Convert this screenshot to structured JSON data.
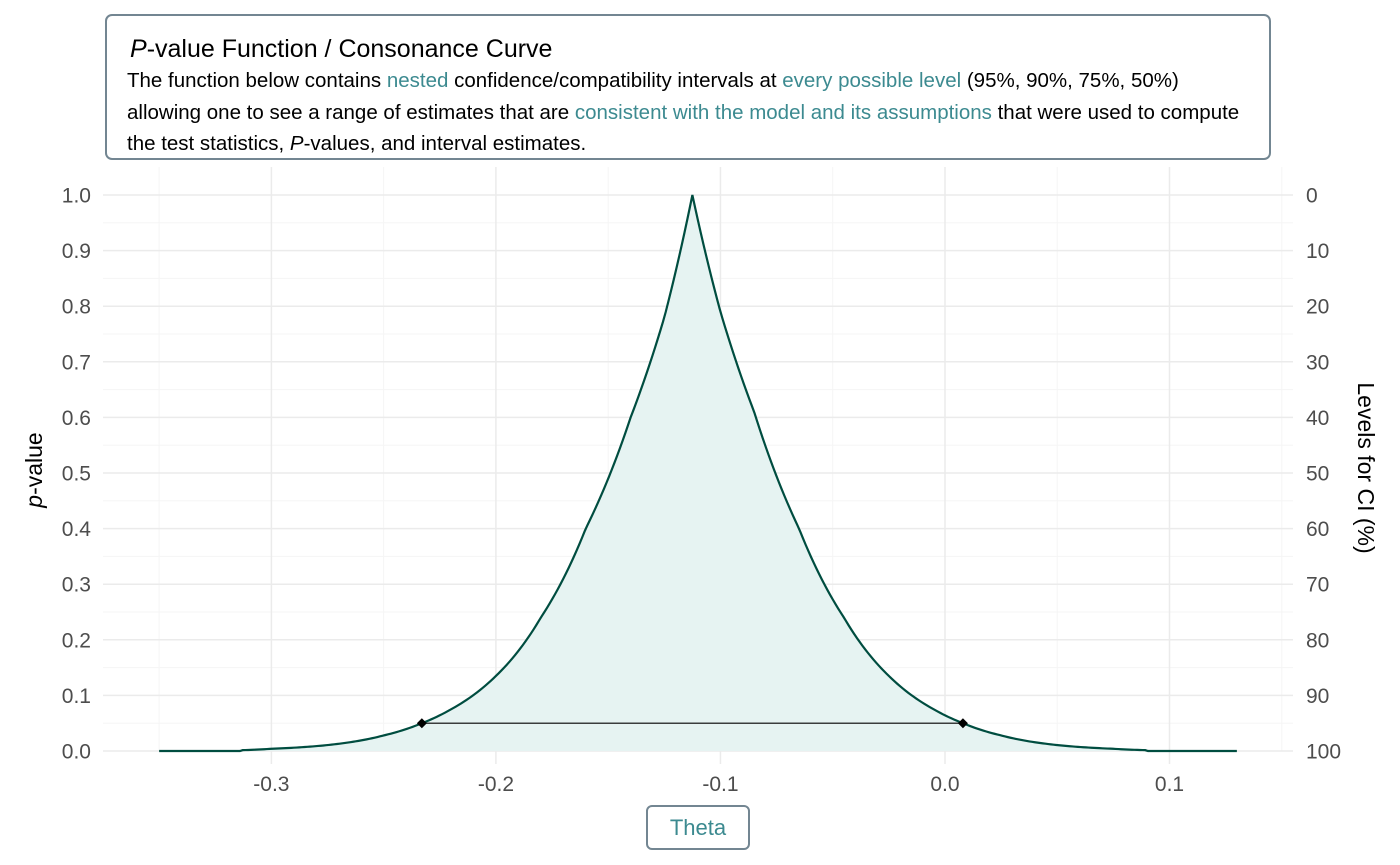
{
  "caption": {
    "title_em": "P",
    "title_rest": "-value Function / Consonance Curve",
    "body": {
      "p1": "The function below contains ",
      "h1": "nested",
      "p2": " confidence/compatibility intervals at ",
      "h2": "every possible level",
      "p3": " (95%, 90%, 75%, 50%) allowing one to see a range of estimates that are ",
      "h3": "consistent with the model and its assumptions",
      "p4": " that were used to compute the test statistics, ",
      "em2": "P",
      "p5": "-values, and interval estimates."
    }
  },
  "colors": {
    "curve": "#004d40",
    "fill": "#e6f3f2",
    "interval": "#000000",
    "highlight": "#3c8a90",
    "box_border": "#738692",
    "grid_major": "#ebebeb",
    "grid_minor": "#f5f5f5"
  },
  "chart_data": {
    "type": "area",
    "xlabel": "Theta",
    "ylabel_em": "p",
    "ylabel_rest": "-value",
    "y2label": "Levels for CI (%)",
    "xlim": [
      -0.375,
      0.155
    ],
    "ylim": [
      0,
      1
    ],
    "x_ticks": [
      -0.3,
      -0.2,
      -0.1,
      0.0,
      0.1
    ],
    "x_tick_labels": [
      "-0.3",
      "-0.2",
      "-0.1",
      "0.0",
      "0.1"
    ],
    "y_ticks": [
      0.0,
      0.1,
      0.2,
      0.3,
      0.4,
      0.5,
      0.6,
      0.7,
      0.8,
      0.9,
      1.0
    ],
    "y_tick_labels": [
      "0.0",
      "0.1",
      "0.2",
      "0.3",
      "0.4",
      "0.5",
      "0.6",
      "0.7",
      "0.8",
      "0.9",
      "1.0"
    ],
    "y2_tick_labels": [
      "100",
      "90",
      "80",
      "70",
      "60",
      "50",
      "40",
      "30",
      "20",
      "10",
      "0"
    ],
    "curve": {
      "estimate": -0.1125,
      "x_range": [
        -0.35,
        0.13
      ],
      "left": [
        [
          -0.35,
          0.0
        ],
        [
          -0.3,
          0.004
        ],
        [
          -0.27,
          0.013
        ],
        [
          -0.25,
          0.028
        ],
        [
          -0.233,
          0.05
        ],
        [
          -0.22,
          0.075
        ],
        [
          -0.2,
          0.135
        ],
        [
          -0.18,
          0.24
        ],
        [
          -0.16,
          0.4
        ],
        [
          -0.14,
          0.6
        ],
        [
          -0.125,
          0.78
        ],
        [
          -0.1125,
          1.0
        ]
      ],
      "right": [
        [
          -0.1125,
          1.0
        ],
        [
          -0.1,
          0.79
        ],
        [
          -0.085,
          0.61
        ],
        [
          -0.065,
          0.4
        ],
        [
          -0.045,
          0.24
        ],
        [
          -0.025,
          0.135
        ],
        [
          -0.005,
          0.075
        ],
        [
          0.008,
          0.05
        ],
        [
          0.025,
          0.028
        ],
        [
          0.045,
          0.013
        ],
        [
          0.075,
          0.004
        ],
        [
          0.13,
          0.0
        ]
      ]
    },
    "interval": {
      "level": 0.95,
      "lower": -0.233,
      "upper": 0.008,
      "p": 0.05
    },
    "grid": true
  }
}
